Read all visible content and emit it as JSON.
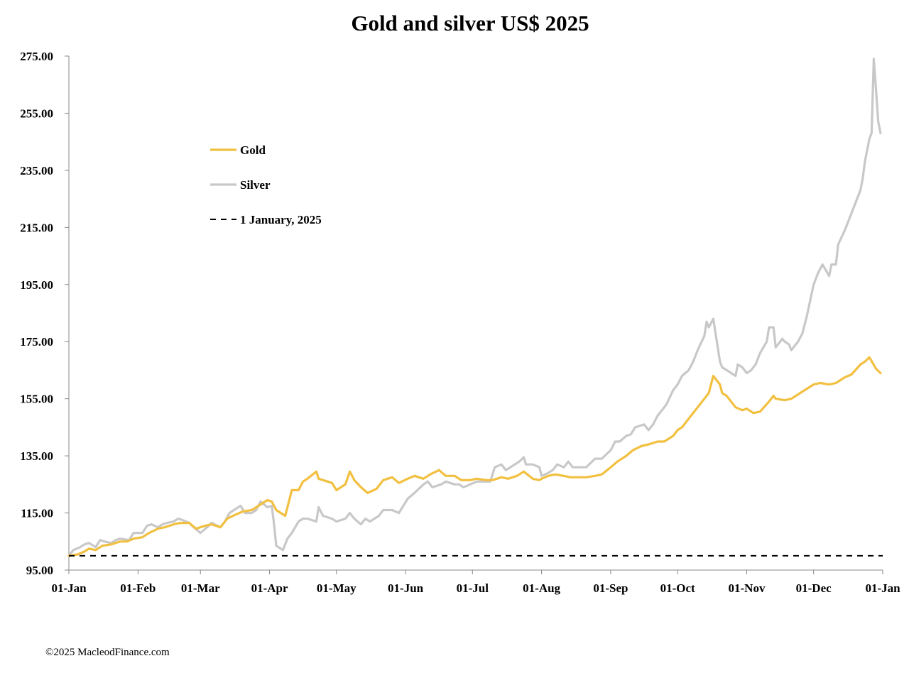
{
  "chart_data": {
    "type": "line",
    "title": "Gold and silver  US$ 2025",
    "xlabel": "",
    "ylabel": "",
    "ylim": [
      95,
      275
    ],
    "y_ticks": [
      "95.00",
      "115.00",
      "135.00",
      "155.00",
      "175.00",
      "195.00",
      "215.00",
      "235.00",
      "255.00",
      "275.00"
    ],
    "x_ticks": [
      "01-Jan",
      "01-Feb",
      "01-Mar",
      "01-Apr",
      "01-May",
      "01-Jun",
      "01-Jul",
      "01-Aug",
      "01-Sep",
      "01-Oct",
      "01-Nov",
      "01-Dec",
      "01-Jan"
    ],
    "grid": false,
    "legend_position": "upper-left",
    "series": [
      {
        "name": "Gold",
        "color": "#F2C040",
        "style": "solid",
        "points": [
          [
            "2025-01-01",
            100
          ],
          [
            "2025-01-05",
            100.5
          ],
          [
            "2025-01-08",
            101.5
          ],
          [
            "2025-01-10",
            102.5
          ],
          [
            "2025-01-13",
            102
          ],
          [
            "2025-01-16",
            103.5
          ],
          [
            "2025-01-20",
            104
          ],
          [
            "2025-01-22",
            104.5
          ],
          [
            "2025-01-24",
            105
          ],
          [
            "2025-01-27",
            105
          ],
          [
            "2025-01-30",
            106
          ],
          [
            "2025-02-03",
            106.5
          ],
          [
            "2025-02-06",
            108
          ],
          [
            "2025-02-10",
            109.5
          ],
          [
            "2025-02-13",
            110
          ],
          [
            "2025-02-17",
            111
          ],
          [
            "2025-02-20",
            111.5
          ],
          [
            "2025-02-24",
            111.5
          ],
          [
            "2025-02-27",
            109.5
          ],
          [
            "2025-03-03",
            110.5
          ],
          [
            "2025-03-06",
            111
          ],
          [
            "2025-03-10",
            110
          ],
          [
            "2025-03-13",
            113
          ],
          [
            "2025-03-17",
            114.5
          ],
          [
            "2025-03-20",
            115.5
          ],
          [
            "2025-03-24",
            116
          ],
          [
            "2025-03-27",
            117.5
          ],
          [
            "2025-03-31",
            119.5
          ],
          [
            "2025-04-02",
            119
          ],
          [
            "2025-04-04",
            116
          ],
          [
            "2025-04-08",
            114
          ],
          [
            "2025-04-11",
            123
          ],
          [
            "2025-04-14",
            123
          ],
          [
            "2025-04-16",
            126
          ],
          [
            "2025-04-18",
            127
          ],
          [
            "2025-04-22",
            129.5
          ],
          [
            "2025-04-23",
            127
          ],
          [
            "2025-04-25",
            126.5
          ],
          [
            "2025-04-29",
            125.5
          ],
          [
            "2025-05-01",
            123
          ],
          [
            "2025-05-05",
            125
          ],
          [
            "2025-05-07",
            129.5
          ],
          [
            "2025-05-09",
            126.5
          ],
          [
            "2025-05-12",
            124
          ],
          [
            "2025-05-15",
            122
          ],
          [
            "2025-05-19",
            123.5
          ],
          [
            "2025-05-22",
            126.5
          ],
          [
            "2025-05-26",
            127.5
          ],
          [
            "2025-05-29",
            125.5
          ],
          [
            "2025-06-02",
            127
          ],
          [
            "2025-06-05",
            128
          ],
          [
            "2025-06-09",
            127
          ],
          [
            "2025-06-12",
            128.5
          ],
          [
            "2025-06-16",
            130
          ],
          [
            "2025-06-19",
            128
          ],
          [
            "2025-06-23",
            128
          ],
          [
            "2025-06-26",
            126.5
          ],
          [
            "2025-06-30",
            126.5
          ],
          [
            "2025-07-03",
            127
          ],
          [
            "2025-07-07",
            126.5
          ],
          [
            "2025-07-10",
            126.5
          ],
          [
            "2025-07-14",
            127.5
          ],
          [
            "2025-07-17",
            127
          ],
          [
            "2025-07-21",
            128
          ],
          [
            "2025-07-24",
            129.5
          ],
          [
            "2025-07-28",
            127
          ],
          [
            "2025-07-31",
            126.5
          ],
          [
            "2025-08-01",
            127
          ],
          [
            "2025-08-04",
            128
          ],
          [
            "2025-08-07",
            128.5
          ],
          [
            "2025-08-11",
            128
          ],
          [
            "2025-08-14",
            127.5
          ],
          [
            "2025-08-18",
            127.5
          ],
          [
            "2025-08-21",
            127.5
          ],
          [
            "2025-08-25",
            128
          ],
          [
            "2025-08-28",
            128.5
          ],
          [
            "2025-09-01",
            131
          ],
          [
            "2025-09-04",
            133
          ],
          [
            "2025-09-08",
            135
          ],
          [
            "2025-09-11",
            137
          ],
          [
            "2025-09-15",
            138.5
          ],
          [
            "2025-09-18",
            139
          ],
          [
            "2025-09-22",
            140
          ],
          [
            "2025-09-25",
            140
          ],
          [
            "2025-09-29",
            142
          ],
          [
            "2025-10-01",
            144
          ],
          [
            "2025-10-03",
            145
          ],
          [
            "2025-10-06",
            148
          ],
          [
            "2025-10-08",
            150
          ],
          [
            "2025-10-10",
            152
          ],
          [
            "2025-10-13",
            155
          ],
          [
            "2025-10-15",
            157
          ],
          [
            "2025-10-17",
            163
          ],
          [
            "2025-10-20",
            160
          ],
          [
            "2025-10-21",
            157
          ],
          [
            "2025-10-23",
            156
          ],
          [
            "2025-10-27",
            152
          ],
          [
            "2025-10-30",
            151
          ],
          [
            "2025-11-01",
            151.5
          ],
          [
            "2025-11-04",
            150
          ],
          [
            "2025-11-07",
            150.5
          ],
          [
            "2025-11-11",
            154
          ],
          [
            "2025-11-13",
            156
          ],
          [
            "2025-11-14",
            155
          ],
          [
            "2025-11-18",
            154.5
          ],
          [
            "2025-11-21",
            155
          ],
          [
            "2025-11-25",
            157
          ],
          [
            "2025-11-28",
            158.5
          ],
          [
            "2025-12-01",
            160
          ],
          [
            "2025-12-04",
            160.5
          ],
          [
            "2025-12-08",
            160
          ],
          [
            "2025-12-11",
            160.5
          ],
          [
            "2025-12-15",
            162.5
          ],
          [
            "2025-12-18",
            163.5
          ],
          [
            "2025-12-22",
            167
          ],
          [
            "2025-12-24",
            168
          ],
          [
            "2025-12-26",
            169.5
          ],
          [
            "2025-12-29",
            165.5
          ],
          [
            "2025-12-31",
            164
          ]
        ]
      },
      {
        "name": "Silver",
        "color": "#C8C8C8",
        "style": "solid",
        "points": [
          [
            "2025-01-01",
            100
          ],
          [
            "2025-01-03",
            102
          ],
          [
            "2025-01-06",
            103
          ],
          [
            "2025-01-08",
            104
          ],
          [
            "2025-01-10",
            104.5
          ],
          [
            "2025-01-13",
            103
          ],
          [
            "2025-01-15",
            105.5
          ],
          [
            "2025-01-17",
            105
          ],
          [
            "2025-01-20",
            104.5
          ],
          [
            "2025-01-22",
            105.5
          ],
          [
            "2025-01-24",
            106
          ],
          [
            "2025-01-28",
            105.5
          ],
          [
            "2025-01-30",
            108
          ],
          [
            "2025-02-03",
            108
          ],
          [
            "2025-02-05",
            110.5
          ],
          [
            "2025-02-07",
            111
          ],
          [
            "2025-02-10",
            110
          ],
          [
            "2025-02-12",
            111
          ],
          [
            "2025-02-14",
            111.5
          ],
          [
            "2025-02-17",
            112
          ],
          [
            "2025-02-19",
            113
          ],
          [
            "2025-02-21",
            112.5
          ],
          [
            "2025-02-24",
            111.5
          ],
          [
            "2025-02-26",
            110
          ],
          [
            "2025-03-01",
            108
          ],
          [
            "2025-03-04",
            110
          ],
          [
            "2025-03-06",
            111.5
          ],
          [
            "2025-03-10",
            110
          ],
          [
            "2025-03-12",
            112
          ],
          [
            "2025-03-14",
            115
          ],
          [
            "2025-03-17",
            116.5
          ],
          [
            "2025-03-19",
            117.5
          ],
          [
            "2025-03-21",
            115
          ],
          [
            "2025-03-24",
            115
          ],
          [
            "2025-03-26",
            116
          ],
          [
            "2025-03-28",
            119
          ],
          [
            "2025-03-31",
            117
          ],
          [
            "2025-04-02",
            117.5
          ],
          [
            "2025-04-03",
            111
          ],
          [
            "2025-04-04",
            103.5
          ],
          [
            "2025-04-07",
            102
          ],
          [
            "2025-04-09",
            106
          ],
          [
            "2025-04-11",
            108
          ],
          [
            "2025-04-14",
            112
          ],
          [
            "2025-04-16",
            113
          ],
          [
            "2025-04-18",
            113
          ],
          [
            "2025-04-22",
            112
          ],
          [
            "2025-04-23",
            117
          ],
          [
            "2025-04-25",
            114
          ],
          [
            "2025-04-29",
            113
          ],
          [
            "2025-05-01",
            112
          ],
          [
            "2025-05-05",
            113
          ],
          [
            "2025-05-07",
            115
          ],
          [
            "2025-05-09",
            113
          ],
          [
            "2025-05-12",
            111
          ],
          [
            "2025-05-14",
            113
          ],
          [
            "2025-05-16",
            112
          ],
          [
            "2025-05-20",
            114
          ],
          [
            "2025-05-22",
            116
          ],
          [
            "2025-05-26",
            116
          ],
          [
            "2025-05-29",
            115
          ],
          [
            "2025-06-02",
            120
          ],
          [
            "2025-06-05",
            122
          ],
          [
            "2025-06-09",
            125
          ],
          [
            "2025-06-11",
            126
          ],
          [
            "2025-06-13",
            124
          ],
          [
            "2025-06-17",
            125
          ],
          [
            "2025-06-19",
            126
          ],
          [
            "2025-06-23",
            125
          ],
          [
            "2025-06-25",
            125
          ],
          [
            "2025-06-27",
            124
          ],
          [
            "2025-06-30",
            125
          ],
          [
            "2025-07-03",
            126
          ],
          [
            "2025-07-07",
            126
          ],
          [
            "2025-07-09",
            126
          ],
          [
            "2025-07-11",
            131
          ],
          [
            "2025-07-14",
            132
          ],
          [
            "2025-07-16",
            130
          ],
          [
            "2025-07-18",
            131
          ],
          [
            "2025-07-22",
            133
          ],
          [
            "2025-07-24",
            134.5
          ],
          [
            "2025-07-25",
            132
          ],
          [
            "2025-07-28",
            132
          ],
          [
            "2025-07-31",
            131
          ],
          [
            "2025-08-01",
            128
          ],
          [
            "2025-08-04",
            129
          ],
          [
            "2025-08-06",
            130
          ],
          [
            "2025-08-08",
            132
          ],
          [
            "2025-08-11",
            131
          ],
          [
            "2025-08-13",
            133
          ],
          [
            "2025-08-15",
            131
          ],
          [
            "2025-08-19",
            131
          ],
          [
            "2025-08-21",
            131
          ],
          [
            "2025-08-25",
            134
          ],
          [
            "2025-08-28",
            134
          ],
          [
            "2025-09-01",
            137
          ],
          [
            "2025-09-03",
            140
          ],
          [
            "2025-09-05",
            140
          ],
          [
            "2025-09-08",
            142
          ],
          [
            "2025-09-10",
            142.5
          ],
          [
            "2025-09-12",
            145
          ],
          [
            "2025-09-16",
            146
          ],
          [
            "2025-09-18",
            144
          ],
          [
            "2025-09-20",
            146
          ],
          [
            "2025-09-22",
            149
          ],
          [
            "2025-09-24",
            151
          ],
          [
            "2025-09-26",
            153
          ],
          [
            "2025-09-29",
            158
          ],
          [
            "2025-10-01",
            160
          ],
          [
            "2025-10-03",
            163
          ],
          [
            "2025-10-06",
            165
          ],
          [
            "2025-10-08",
            168
          ],
          [
            "2025-10-10",
            172
          ],
          [
            "2025-10-13",
            177
          ],
          [
            "2025-10-14",
            182
          ],
          [
            "2025-10-15",
            180
          ],
          [
            "2025-10-17",
            183
          ],
          [
            "2025-10-20",
            168
          ],
          [
            "2025-10-21",
            166
          ],
          [
            "2025-10-23",
            165
          ],
          [
            "2025-10-27",
            163
          ],
          [
            "2025-10-28",
            167
          ],
          [
            "2025-10-30",
            166
          ],
          [
            "2025-11-01",
            164
          ],
          [
            "2025-11-03",
            165
          ],
          [
            "2025-11-05",
            167
          ],
          [
            "2025-11-07",
            171
          ],
          [
            "2025-11-10",
            175
          ],
          [
            "2025-11-11",
            180
          ],
          [
            "2025-11-13",
            180
          ],
          [
            "2025-11-14",
            173
          ],
          [
            "2025-11-17",
            176
          ],
          [
            "2025-11-18",
            175
          ],
          [
            "2025-11-20",
            174
          ],
          [
            "2025-11-21",
            172
          ],
          [
            "2025-11-24",
            175
          ],
          [
            "2025-11-26",
            178
          ],
          [
            "2025-11-28",
            184
          ],
          [
            "2025-12-01",
            195
          ],
          [
            "2025-12-03",
            199
          ],
          [
            "2025-12-05",
            202
          ],
          [
            "2025-12-08",
            198
          ],
          [
            "2025-12-09",
            202
          ],
          [
            "2025-12-11",
            202
          ],
          [
            "2025-12-12",
            209
          ],
          [
            "2025-12-15",
            214
          ],
          [
            "2025-12-17",
            218
          ],
          [
            "2025-12-19",
            222
          ],
          [
            "2025-12-22",
            228
          ],
          [
            "2025-12-23",
            232
          ],
          [
            "2025-12-24",
            238
          ],
          [
            "2025-12-26",
            246
          ],
          [
            "2025-12-27",
            248
          ],
          [
            "2025-12-28",
            274
          ],
          [
            "2025-12-29",
            263
          ],
          [
            "2025-12-30",
            252
          ],
          [
            "2025-12-31",
            248
          ]
        ]
      },
      {
        "name": "1 January, 2025",
        "color": "#000000",
        "style": "dashed",
        "points": [
          [
            "2025-01-01",
            100
          ],
          [
            "2026-01-01",
            100
          ]
        ]
      }
    ]
  },
  "credit": "©2025 MacleodFinance.com"
}
